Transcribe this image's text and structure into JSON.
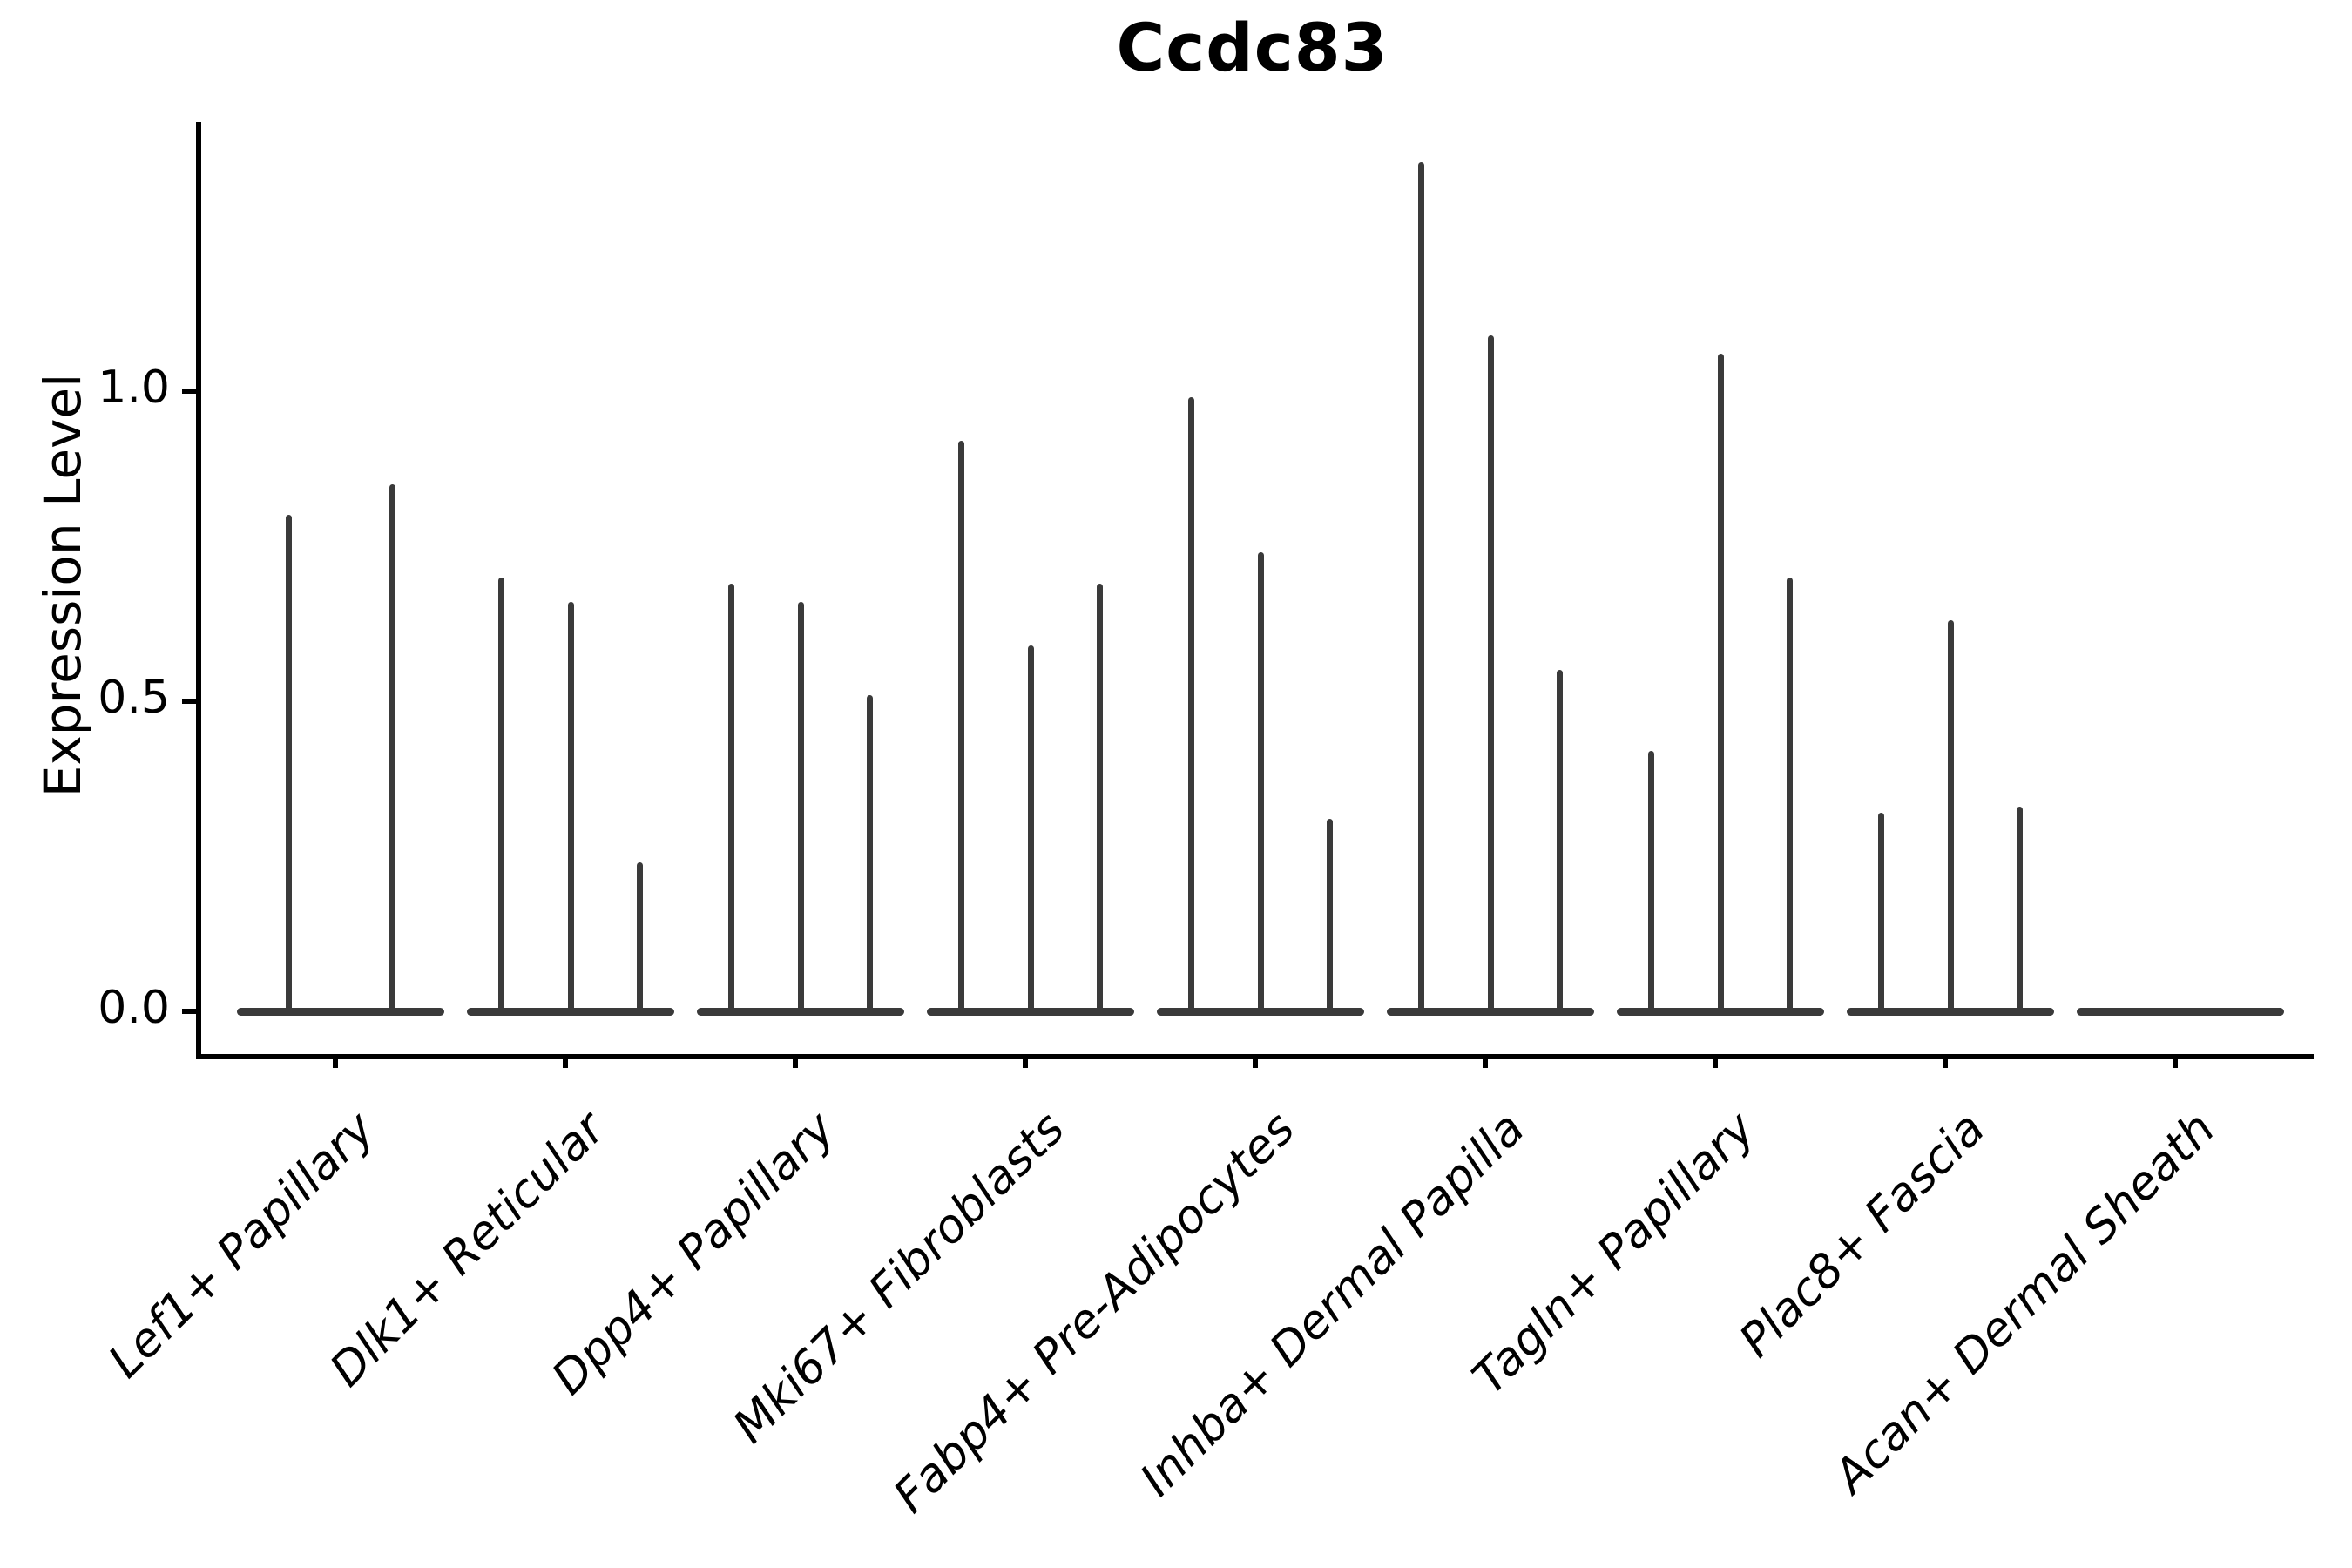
{
  "chart_data": {
    "type": "violin",
    "title": "Ccdc83",
    "ylabel": "Expression Level",
    "yticks": [
      0.0,
      0.5,
      1.0
    ],
    "ytick_labels": [
      "0.0",
      "0.5",
      "1.0"
    ],
    "ylim": [
      -0.07,
      1.43
    ],
    "grid": false,
    "legend": "none",
    "categories": [
      "Lef1+ Papillary",
      "Dlk1+ Reticular",
      "Dpp4+ Papillary",
      "Mki67+ Fibroblasts",
      "Fabp4+ Pre-Adipocytes",
      "Inhba+ Dermal Papilla",
      "Tagln+ Papillary",
      "Plac8+ Fascia",
      "Acan+ Dermal Sheath"
    ],
    "series": [
      {
        "name": "Lef1+ Papillary",
        "spike_maxima": [
          0.8,
          0.85
        ]
      },
      {
        "name": "Dlk1+ Reticular",
        "spike_maxima": [
          0.7,
          0.66,
          0.24
        ]
      },
      {
        "name": "Dpp4+ Papillary",
        "spike_maxima": [
          0.69,
          0.66,
          0.51
        ]
      },
      {
        "name": "Mki67+ Fibroblasts",
        "spike_maxima": [
          0.92,
          0.59,
          0.69
        ]
      },
      {
        "name": "Fabp4+ Pre-Adipocytes",
        "spike_maxima": [
          0.99,
          0.74,
          0.31
        ]
      },
      {
        "name": "Inhba+ Dermal Papilla",
        "spike_maxima": [
          1.37,
          1.09,
          0.55
        ]
      },
      {
        "name": "Tagln+ Papillary",
        "spike_maxima": [
          0.42,
          1.06,
          0.7
        ]
      },
      {
        "name": "Plac8+ Fascia",
        "spike_maxima": [
          0.32,
          0.63,
          0.33
        ]
      },
      {
        "name": "Acan+ Dermal Sheath",
        "spike_maxima": []
      }
    ],
    "baseline_value": 0.0,
    "violin_color": "#3a3a3a",
    "axis_color": "#000000"
  }
}
